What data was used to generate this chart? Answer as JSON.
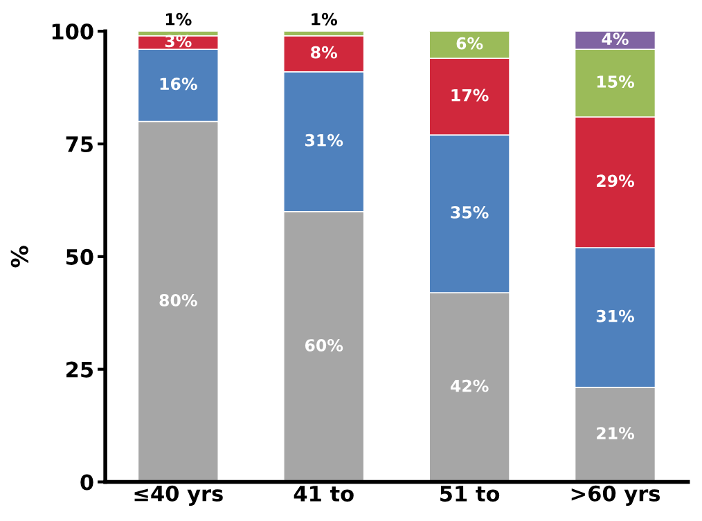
{
  "chart_data": {
    "type": "bar",
    "stacked": true,
    "ylabel": "%",
    "categories": [
      "≤40 yrs",
      "41 to",
      "51 to",
      ">60 yrs"
    ],
    "series": [
      {
        "color": "#a6a6a6",
        "values": [
          80,
          60,
          42,
          21
        ],
        "value_labels": [
          "80%",
          "60%",
          "42%",
          "21%"
        ]
      },
      {
        "color": "#4f81bd",
        "values": [
          16,
          31,
          35,
          31
        ],
        "value_labels": [
          "16%",
          "31%",
          "35%",
          "31%"
        ]
      },
      {
        "color": "#d0283c",
        "values": [
          3,
          8,
          17,
          29
        ],
        "value_labels": [
          "3%",
          "8%",
          "17%",
          "29%"
        ]
      },
      {
        "color": "#9bbb59",
        "values": [
          1,
          1,
          6,
          15
        ],
        "value_labels": [
          "1%",
          "1%",
          "6%",
          "15%"
        ]
      },
      {
        "color": "#8064a2",
        "values": [
          null,
          null,
          null,
          4
        ],
        "value_labels": [
          null,
          null,
          null,
          "4%"
        ]
      }
    ],
    "ylim": [
      0,
      100
    ],
    "yticks": [
      0,
      25,
      50,
      75,
      100
    ],
    "grid": false
  }
}
